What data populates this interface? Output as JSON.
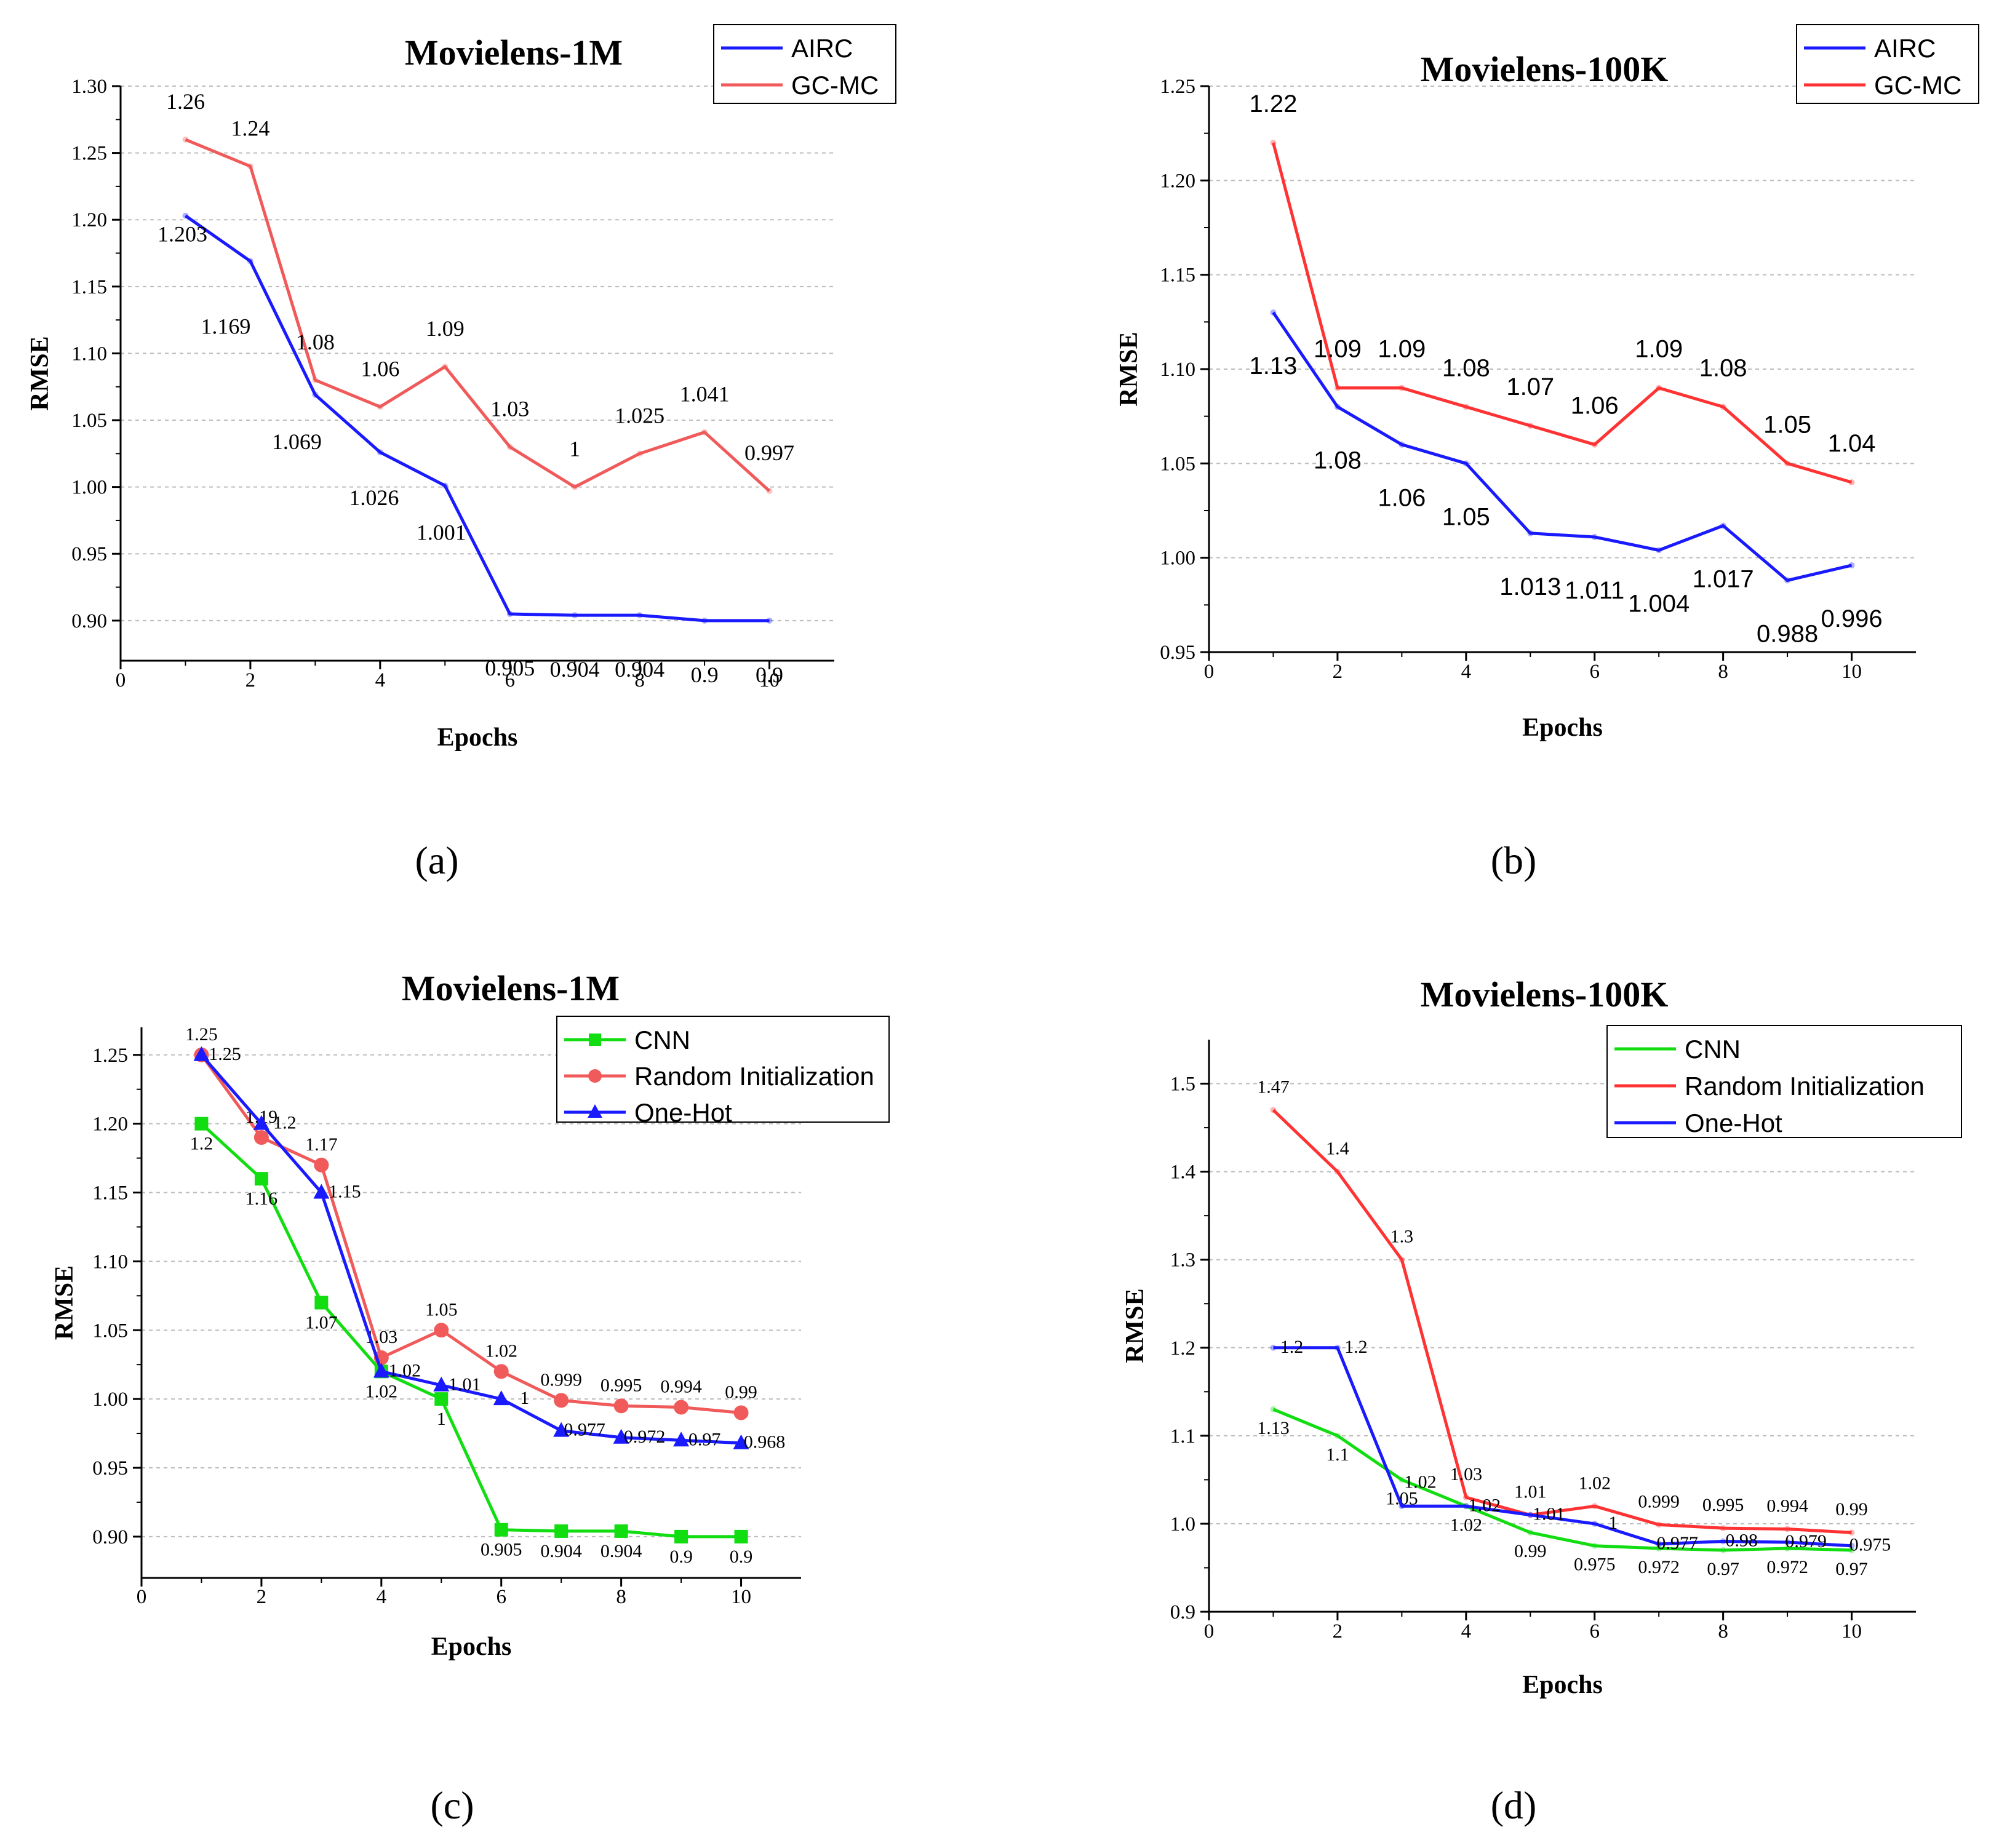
{
  "colors": {
    "blue": "#1a1aff",
    "red": "#ff3333",
    "red_soft": "#f05a5a",
    "green": "#11dd11",
    "grid": "#bdbdbd",
    "axis": "#000000"
  },
  "chart_data": [
    {
      "type": "line",
      "title": "Movielens-1M",
      "caption": "(a)",
      "xlabel": "Epochs",
      "ylabel": "RMSE",
      "xlim": [
        0,
        11
      ],
      "ylim": [
        0.87,
        1.3
      ],
      "xticks": [
        0,
        2,
        4,
        6,
        8,
        10
      ],
      "xtick_labels": [
        "0",
        "2",
        "4",
        "6",
        "8",
        "10"
      ],
      "yticks": [
        0.9,
        0.95,
        1.0,
        1.05,
        1.1,
        1.15,
        1.2,
        1.25,
        1.3
      ],
      "ytick_labels": [
        "0.90",
        "0.95",
        "1.00",
        "1.05",
        "1.10",
        "1.15",
        "1.20",
        "1.25",
        "1.30"
      ],
      "grid": true,
      "legend_position": "top-right",
      "x": [
        1,
        2,
        3,
        4,
        5,
        6,
        7,
        8,
        9,
        10
      ],
      "series": [
        {
          "name": "AIRC",
          "color_key": "blue",
          "marker": "none",
          "values": [
            1.203,
            1.169,
            1.069,
            1.026,
            1.001,
            0.905,
            0.904,
            0.904,
            0.9,
            0.9
          ],
          "labels": [
            "1.203",
            "1.169",
            "1.069",
            "1.026",
            "1.001",
            "0.905",
            "0.904",
            "0.904",
            "0.9",
            "0.9"
          ]
        },
        {
          "name": "GC-MC",
          "color_key": "red_soft",
          "marker": "none",
          "values": [
            1.26,
            1.24,
            1.08,
            1.06,
            1.09,
            1.03,
            1.0,
            1.025,
            1.041,
            0.997
          ],
          "labels": [
            "1.26",
            "1.24",
            "1.08",
            "1.06",
            "1.09",
            "1.03",
            "1",
            "1.025",
            "1.041",
            "0.997"
          ]
        }
      ]
    },
    {
      "type": "line",
      "title": "Movielens-100K",
      "caption": "(b)",
      "xlabel": "Epochs",
      "ylabel": "RMSE",
      "xlim": [
        0,
        11
      ],
      "ylim": [
        0.95,
        1.25
      ],
      "xticks": [
        0,
        2,
        4,
        6,
        8,
        10
      ],
      "xtick_labels": [
        "0",
        "2",
        "4",
        "6",
        "8",
        "10"
      ],
      "yticks": [
        0.95,
        1.0,
        1.05,
        1.1,
        1.15,
        1.2,
        1.25
      ],
      "ytick_labels": [
        "0.95",
        "1.00",
        "1.05",
        "1.10",
        "1.15",
        "1.20",
        "1.25"
      ],
      "grid": true,
      "legend_position": "top-right",
      "x": [
        1,
        2,
        3,
        4,
        5,
        6,
        7,
        8,
        9,
        10
      ],
      "series": [
        {
          "name": "AIRC",
          "color_key": "blue",
          "marker": "none",
          "values": [
            1.13,
            1.08,
            1.06,
            1.05,
            1.013,
            1.011,
            1.004,
            1.017,
            0.988,
            0.996
          ],
          "labels": [
            "1.13",
            "1.08",
            "1.06",
            "1.05",
            "1.013",
            "1.011",
            "1.004",
            "1.017",
            "0.988",
            "0.996"
          ]
        },
        {
          "name": "GC-MC",
          "color_key": "red",
          "marker": "none",
          "values": [
            1.22,
            1.09,
            1.09,
            1.08,
            1.07,
            1.06,
            1.09,
            1.08,
            1.05,
            1.04
          ],
          "labels": [
            "1.22",
            "1.09",
            "1.09",
            "1.08",
            "1.07",
            "1.06",
            "1.09",
            "1.08",
            "1.05",
            "1.04"
          ]
        }
      ]
    },
    {
      "type": "line",
      "title": "Movielens-1M",
      "caption": "(c)",
      "xlabel": "Epochs",
      "ylabel": "RMSE",
      "xlim": [
        0,
        11
      ],
      "ylim": [
        0.87,
        1.27
      ],
      "xticks": [
        0,
        2,
        4,
        6,
        8,
        10
      ],
      "xtick_labels": [
        "0",
        "2",
        "4",
        "6",
        "8",
        "10"
      ],
      "yticks": [
        0.9,
        0.95,
        1.0,
        1.05,
        1.1,
        1.15,
        1.2,
        1.25
      ],
      "ytick_labels": [
        "0.90",
        "0.95",
        "1.00",
        "1.05",
        "1.10",
        "1.15",
        "1.20",
        "1.25"
      ],
      "grid": true,
      "legend_position": "top-right",
      "x": [
        1,
        2,
        3,
        4,
        5,
        6,
        7,
        8,
        9,
        10
      ],
      "series": [
        {
          "name": "CNN",
          "color_key": "green",
          "marker": "square",
          "values": [
            1.2,
            1.16,
            1.07,
            1.02,
            1.0,
            0.905,
            0.904,
            0.904,
            0.9,
            0.9
          ],
          "labels": [
            "1.2",
            "1.16",
            "1.07",
            "1.02",
            "1",
            "0.905",
            "0.904",
            "0.904",
            "0.9",
            "0.9"
          ]
        },
        {
          "name": "Random Initialization",
          "color_key": "red_soft",
          "marker": "circle",
          "values": [
            1.25,
            1.19,
            1.17,
            1.03,
            1.05,
            1.02,
            0.999,
            0.995,
            0.994,
            0.99
          ],
          "labels": [
            "1.25",
            "1.19",
            "1.17",
            "1.03",
            "1.05",
            "1.02",
            "0.999",
            "0.995",
            "0.994",
            "0.99"
          ]
        },
        {
          "name": "One-Hot",
          "color_key": "blue",
          "marker": "triangle",
          "values": [
            1.25,
            1.2,
            1.15,
            1.02,
            1.01,
            1.0,
            0.977,
            0.972,
            0.97,
            0.968
          ],
          "labels": [
            "1.25",
            "1.2",
            "1.15",
            "1.02",
            "1.01",
            "1",
            "0.977",
            "0.972",
            "0.97",
            "0.968"
          ]
        }
      ]
    },
    {
      "type": "line",
      "title": "Movielens-100K",
      "caption": "(d)",
      "xlabel": "Epochs",
      "ylabel": "RMSE",
      "xlim": [
        0,
        11
      ],
      "ylim": [
        0.9,
        1.55
      ],
      "xticks": [
        0,
        2,
        4,
        6,
        8,
        10
      ],
      "xtick_labels": [
        "0",
        "2",
        "4",
        "6",
        "8",
        "10"
      ],
      "yticks": [
        0.9,
        1.0,
        1.1,
        1.2,
        1.3,
        1.4,
        1.5
      ],
      "ytick_labels": [
        "0.9",
        "1.0",
        "1.1",
        "1.2",
        "1.3",
        "1.4",
        "1.5"
      ],
      "grid": true,
      "legend_position": "top-right",
      "x": [
        1,
        2,
        3,
        4,
        5,
        6,
        7,
        8,
        9,
        10
      ],
      "series": [
        {
          "name": "CNN",
          "color_key": "green",
          "marker": "none",
          "values": [
            1.13,
            1.1,
            1.05,
            1.02,
            0.99,
            0.975,
            0.972,
            0.97,
            0.972,
            0.97
          ],
          "labels": [
            "1.13",
            "1.1",
            "1.05",
            "1.02",
            "0.99",
            "0.975",
            "0.972",
            "0.97",
            "0.972",
            "0.97"
          ]
        },
        {
          "name": "Random Initialization",
          "color_key": "red",
          "marker": "none",
          "values": [
            1.47,
            1.4,
            1.3,
            1.03,
            1.01,
            1.02,
            0.999,
            0.995,
            0.994,
            0.99
          ],
          "labels": [
            "1.47",
            "1.4",
            "1.3",
            "1.03",
            "1.01",
            "1.02",
            "0.999",
            "0.995",
            "0.994",
            "0.99"
          ]
        },
        {
          "name": "One-Hot",
          "color_key": "blue",
          "marker": "none",
          "values": [
            1.2,
            1.2,
            1.02,
            1.02,
            1.01,
            1.0,
            0.977,
            0.98,
            0.979,
            0.975
          ],
          "labels": [
            "1.2",
            "1.2",
            "1.02",
            "1.02",
            "1.01",
            "1",
            "0.977",
            "0.98",
            "0.979",
            "0.975"
          ]
        }
      ]
    }
  ]
}
